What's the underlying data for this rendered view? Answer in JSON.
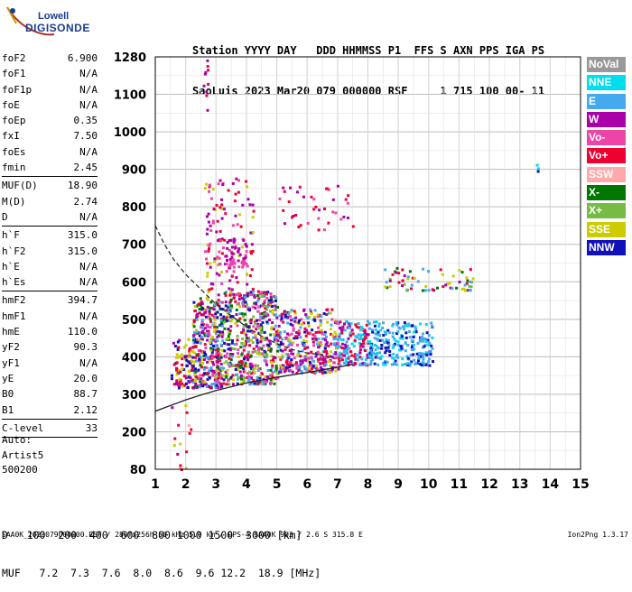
{
  "logo": {
    "line1": "Lowell",
    "line2": "DIGISONDE"
  },
  "header": {
    "line1": "Station YYYY DAY   DDD HHMMSS P1  FFS S AXN PPS IGA PS",
    "line2": "SaoLuis 2023 Mar20 079 000000 RSF     1 715 100 00- 11"
  },
  "params": [
    {
      "name": "foF2",
      "value": "6.900"
    },
    {
      "name": "foF1",
      "value": "N/A"
    },
    {
      "name": "foF1p",
      "value": "N/A"
    },
    {
      "name": "foE",
      "value": "N/A"
    },
    {
      "name": "foEp",
      "value": "0.35"
    },
    {
      "name": "fxI",
      "value": "7.50"
    },
    {
      "name": "foEs",
      "value": "N/A"
    },
    {
      "name": "fmin",
      "value": "2.45"
    },
    {
      "name": "MUF(D)",
      "value": "18.90",
      "sep": true
    },
    {
      "name": "M(D)",
      "value": "2.74"
    },
    {
      "name": "D",
      "value": "N/A"
    },
    {
      "name": "h`F",
      "value": "315.0",
      "sep": true
    },
    {
      "name": "h`F2",
      "value": "315.0"
    },
    {
      "name": "h`E",
      "value": "N/A"
    },
    {
      "name": "h`Es",
      "value": "N/A"
    },
    {
      "name": "hmF2",
      "value": "394.7",
      "sep": true
    },
    {
      "name": "hmF1",
      "value": "N/A"
    },
    {
      "name": "hmE",
      "value": "110.0"
    },
    {
      "name": "yF2",
      "value": "90.3"
    },
    {
      "name": "yF1",
      "value": "N/A"
    },
    {
      "name": "yE",
      "value": "20.0"
    },
    {
      "name": "B0",
      "value": "88.7"
    },
    {
      "name": "B1",
      "value": "2.12"
    },
    {
      "name": "C-level",
      "value": "33",
      "sep": true
    }
  ],
  "auto": {
    "line1": "Auto:",
    "line2": "Artist5",
    "line3": "500200"
  },
  "legend": [
    {
      "label": "NoVal",
      "color": "#999999"
    },
    {
      "label": "NNE",
      "color": "#00ddee"
    },
    {
      "label": "E",
      "color": "#44aaee"
    },
    {
      "label": "W",
      "color": "#aa00aa"
    },
    {
      "label": "Vo-",
      "color": "#ee44aa"
    },
    {
      "label": "Vo+",
      "color": "#ee0033"
    },
    {
      "label": "SSW",
      "color": "#ffaaaa"
    },
    {
      "label": "X-",
      "color": "#007700"
    },
    {
      "label": "X+",
      "color": "#77bb44"
    },
    {
      "label": "SSE",
      "color": "#cccc00"
    },
    {
      "label": "NNW",
      "color": "#1111bb"
    }
  ],
  "muf_table": {
    "d_label": "D",
    "d_values": [
      "100",
      "200",
      "400",
      "600",
      "800",
      "1000",
      "1500",
      "3000"
    ],
    "d_unit": "[km]",
    "m_label": "MUF",
    "m_values": [
      "7.2",
      "7.3",
      "7.6",
      "8.0",
      "8.6",
      "9.6",
      "12.2",
      "18.9"
    ],
    "m_unit": "[MHz]"
  },
  "footer": "SAA0K_2023079000000.RSF / 280fx256h 50 kHz 5.0 km / DPS-4 SAA0K 903 / 2.6 S 315.8 E",
  "version": "Ion2Png 1.3.17",
  "chart_data": {
    "type": "scatter",
    "x_ticks": [
      1,
      2,
      3,
      4,
      5,
      6,
      7,
      8,
      9,
      10,
      11,
      12,
      13,
      14,
      15
    ],
    "y_ticks": [
      80,
      200,
      300,
      400,
      500,
      600,
      700,
      800,
      900,
      1000,
      1100,
      1280
    ],
    "xlim": [
      1,
      15
    ],
    "ylim": [
      80,
      1280
    ],
    "grid": true,
    "profile_curve": [
      [
        1,
        750
      ],
      [
        1.3,
        700
      ],
      [
        1.6,
        660
      ],
      [
        2,
        620
      ],
      [
        2.5,
        580
      ],
      [
        3,
        540
      ],
      [
        3.5,
        510
      ],
      [
        4,
        480
      ],
      [
        4.5,
        455
      ],
      [
        5,
        435
      ],
      [
        5.5,
        420
      ],
      [
        6,
        410
      ],
      [
        6.5,
        405
      ],
      [
        6.9,
        395
      ]
    ],
    "trace_curve": [
      [
        1,
        255
      ],
      [
        1.5,
        270
      ],
      [
        2,
        285
      ],
      [
        2.5,
        298
      ],
      [
        3,
        310
      ],
      [
        3.5,
        320
      ],
      [
        4,
        330
      ],
      [
        4.5,
        338
      ],
      [
        5,
        345
      ],
      [
        5.5,
        352
      ],
      [
        6,
        358
      ],
      [
        6.5,
        365
      ],
      [
        7,
        372
      ],
      [
        7.5,
        380
      ]
    ],
    "scatter_regions": [
      {
        "x": [
          1.5,
          2.2
        ],
        "y": [
          320,
          450
        ],
        "n": 90,
        "colors": [
          "#aa00aa",
          "#cccc00",
          "#1111bb",
          "#ee0033"
        ]
      },
      {
        "x": [
          2.2,
          3.2
        ],
        "y": [
          320,
          560
        ],
        "n": 360,
        "colors": [
          "#aa00aa",
          "#ee0033",
          "#cccc00",
          "#1111bb",
          "#ee44aa",
          "#007700",
          "#44aaee"
        ]
      },
      {
        "x": [
          3.2,
          5
        ],
        "y": [
          330,
          580
        ],
        "n": 520,
        "colors": [
          "#aa00aa",
          "#ee0033",
          "#1111bb",
          "#cccc00",
          "#ee44aa",
          "#44aaee",
          "#007700",
          "#77bb44"
        ]
      },
      {
        "x": [
          5,
          7
        ],
        "y": [
          360,
          530
        ],
        "n": 380,
        "colors": [
          "#aa00aa",
          "#ee0033",
          "#1111bb",
          "#cccc00",
          "#ee44aa",
          "#44aaee"
        ]
      },
      {
        "x": [
          7,
          8
        ],
        "y": [
          380,
          500
        ],
        "n": 150,
        "colors": [
          "#ee0033",
          "#44aaee",
          "#aa00aa",
          "#00ddee"
        ]
      },
      {
        "x": [
          8,
          10.1
        ],
        "y": [
          380,
          500
        ],
        "n": 240,
        "colors": [
          "#44aaee",
          "#00ddee",
          "#44aaee",
          "#1111bb"
        ]
      },
      {
        "x": [
          2.6,
          4.2
        ],
        "y": [
          560,
          880
        ],
        "n": 130,
        "colors": [
          "#aa00aa",
          "#ee44aa",
          "#cccc00",
          "#ee0033"
        ]
      },
      {
        "x": [
          3,
          4
        ],
        "y": [
          640,
          720
        ],
        "n": 60,
        "colors": [
          "#ee44aa",
          "#aa00aa"
        ]
      },
      {
        "x": [
          5,
          7.5
        ],
        "y": [
          740,
          860
        ],
        "n": 40,
        "colors": [
          "#aa00aa",
          "#ee44aa",
          "#ee0033"
        ]
      },
      {
        "x": [
          8.5,
          11.5
        ],
        "y": [
          580,
          640
        ],
        "n": 70,
        "colors": [
          "#cccc00",
          "#44aaee",
          "#77bb44",
          "#007700",
          "#ee0033",
          "#aa00aa"
        ]
      },
      {
        "x": [
          2.55,
          2.7
        ],
        "y": [
          1020,
          1280
        ],
        "n": 10,
        "colors": [
          "#aa00aa",
          "#1111bb",
          "#ee0033"
        ]
      },
      {
        "x": [
          1.5,
          2.2
        ],
        "y": [
          80,
          290
        ],
        "n": 16,
        "colors": [
          "#aa00aa",
          "#ffaaaa",
          "#cccc00",
          "#ee0033"
        ]
      },
      {
        "x": [
          13.5,
          13.6
        ],
        "y": [
          895,
          920
        ],
        "n": 3,
        "colors": [
          "#1111bb",
          "#00ddee"
        ]
      }
    ]
  }
}
